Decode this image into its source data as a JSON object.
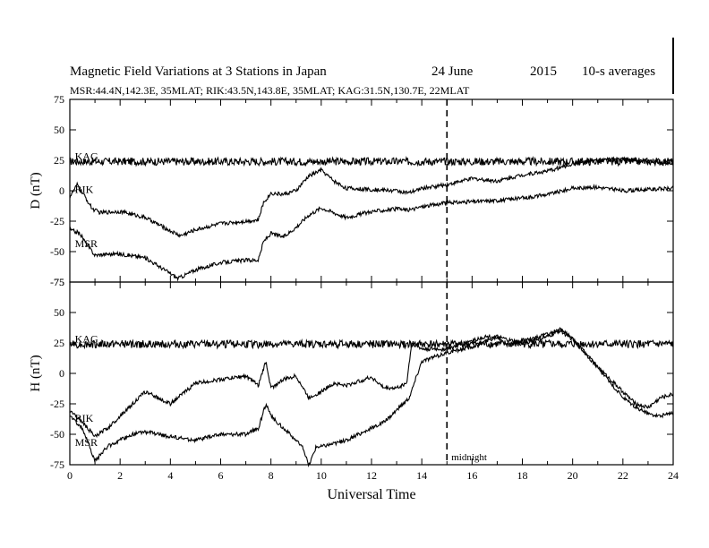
{
  "header": {
    "title": "Magnetic Field Variations at 3 Stations in Japan",
    "date": "24 June",
    "year": "2015",
    "averaging": "10-s averages",
    "stations": "MSR:44.4N,142.3E, 35MLAT;  RIK:43.5N,143.8E, 35MLAT;  KAG:31.5N,130.7E, 22MLAT"
  },
  "colors": {
    "axis": "#000000",
    "trace": "#000000",
    "background": "#ffffff"
  },
  "chart_data": [
    {
      "type": "line",
      "panel": "D",
      "ylabel": "D (nT)",
      "xlim": [
        0,
        24
      ],
      "ylim": [
        -75,
        75
      ],
      "yticks": [
        75,
        50,
        25,
        0,
        -25,
        -50,
        -75
      ],
      "midnight_line": 15,
      "series": [
        {
          "name": "KAG",
          "x": [
            0,
            2,
            4,
            6,
            8,
            10,
            12,
            14,
            15,
            16,
            18,
            20,
            22,
            24
          ],
          "values": [
            24,
            24,
            24,
            24,
            24,
            24,
            24,
            24,
            24,
            24,
            24,
            24,
            24,
            24
          ]
        },
        {
          "name": "RIK",
          "x": [
            0,
            0.3,
            0.6,
            0.9,
            1.2,
            2,
            3,
            4,
            4.4,
            5,
            6,
            7,
            7.5,
            7.7,
            8,
            8.5,
            9,
            9.5,
            10,
            10.5,
            11,
            12,
            13,
            13.5,
            14,
            15,
            16,
            17,
            18,
            19,
            20,
            21,
            22,
            23,
            24
          ],
          "values": [
            -5,
            5,
            -5,
            -15,
            -18,
            -17,
            -22,
            -33,
            -37,
            -32,
            -27,
            -25,
            -24,
            -10,
            -2,
            -3,
            0,
            12,
            17,
            8,
            2,
            1,
            0,
            -2,
            2,
            5,
            10,
            8,
            13,
            16,
            22,
            25,
            26,
            24,
            23
          ]
        },
        {
          "name": "MSR",
          "x": [
            0,
            0.4,
            0.7,
            1,
            1.5,
            2,
            3,
            4,
            4.3,
            5,
            6,
            7,
            7.5,
            7.7,
            8,
            8.5,
            9,
            9.5,
            10,
            10.5,
            11,
            12,
            13,
            13.5,
            14,
            15,
            16,
            17,
            18,
            19,
            20,
            21,
            22,
            23,
            24
          ],
          "values": [
            -32,
            -35,
            -45,
            -53,
            -52,
            -52,
            -55,
            -68,
            -72,
            -65,
            -59,
            -57,
            -57,
            -42,
            -35,
            -38,
            -30,
            -20,
            -14,
            -18,
            -22,
            -17,
            -15,
            -16,
            -13,
            -10,
            -9,
            -8,
            -6,
            -3,
            2,
            3,
            0,
            1,
            2
          ]
        }
      ]
    },
    {
      "type": "line",
      "panel": "H",
      "ylabel": "H (nT)",
      "xlabel": "Universal Time",
      "xlim": [
        0,
        24
      ],
      "ylim": [
        -75,
        75
      ],
      "yticks": [
        75,
        50,
        25,
        0,
        -25,
        -50,
        -75
      ],
      "xticks": [
        0,
        2,
        4,
        6,
        8,
        10,
        12,
        14,
        16,
        18,
        20,
        22,
        24
      ],
      "midnight_line": 15,
      "annotation": "midnight",
      "series": [
        {
          "name": "KAG",
          "x": [
            0,
            2,
            4,
            6,
            8,
            10,
            12,
            14,
            15,
            16,
            18,
            20,
            22,
            24
          ],
          "values": [
            24,
            24,
            24,
            24,
            24,
            24,
            24,
            24,
            24,
            24,
            24,
            24,
            24,
            24
          ]
        },
        {
          "name": "RIK",
          "x": [
            0,
            0.5,
            1,
            1.5,
            2,
            3,
            4,
            5,
            6,
            7,
            7.5,
            7.8,
            8,
            8.5,
            9,
            9.5,
            10,
            10.5,
            11,
            12,
            12.5,
            13,
            13.4,
            13.6,
            14,
            15,
            16,
            16.5,
            17,
            17.5,
            18,
            19,
            19.5,
            20,
            21,
            22,
            22.5,
            23,
            23.5,
            24
          ],
          "values": [
            -30,
            -40,
            -52,
            -45,
            -35,
            -15,
            -25,
            -8,
            -5,
            -2,
            -10,
            10,
            -12,
            -5,
            -2,
            -20,
            -15,
            -8,
            -10,
            -3,
            -12,
            -12,
            -8,
            25,
            20,
            20,
            27,
            30,
            30,
            27,
            25,
            30,
            35,
            28,
            5,
            -15,
            -25,
            -28,
            -20,
            -17
          ]
        },
        {
          "name": "MSR",
          "x": [
            0,
            0.5,
            1,
            1.5,
            2,
            2.5,
            3,
            4,
            5,
            6,
            7,
            7.5,
            7.8,
            8,
            8.5,
            9,
            9.3,
            9.5,
            9.8,
            10,
            11,
            12,
            12.5,
            13,
            13.5,
            14,
            15,
            16,
            16.5,
            17,
            17.5,
            18,
            19,
            19.5,
            20,
            21,
            22,
            22.5,
            23,
            23.5,
            24
          ],
          "values": [
            -35,
            -45,
            -72,
            -60,
            -55,
            -50,
            -48,
            -52,
            -55,
            -50,
            -50,
            -45,
            -25,
            -35,
            -45,
            -55,
            -62,
            -76,
            -60,
            -60,
            -55,
            -45,
            -40,
            -30,
            -20,
            10,
            17,
            22,
            26,
            30,
            23,
            27,
            32,
            36,
            29,
            5,
            -20,
            -28,
            -33,
            -35,
            -32
          ]
        }
      ]
    }
  ]
}
